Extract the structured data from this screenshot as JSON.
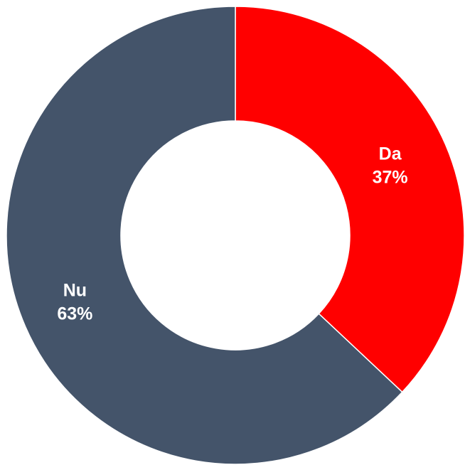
{
  "chart_data": {
    "type": "donut",
    "categories": [
      "Da",
      "Nu"
    ],
    "values": [
      37,
      63
    ],
    "value_labels": [
      "37%",
      "63%"
    ],
    "colors": [
      "#ff0000",
      "#44546a"
    ]
  }
}
